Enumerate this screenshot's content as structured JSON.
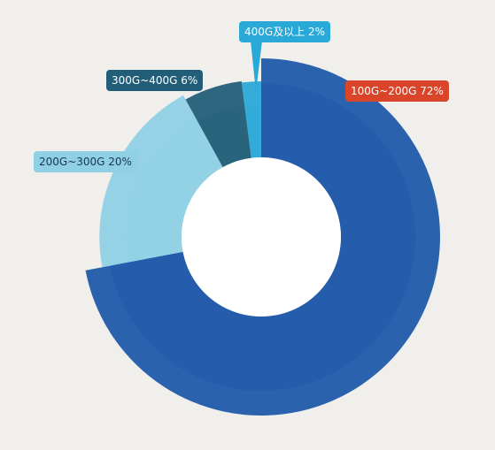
{
  "chart_data": {
    "type": "pie",
    "variant": "rose-donut",
    "title": "",
    "slices": [
      {
        "label": "100G~200G",
        "value": 72,
        "display": "100G~200G 72%",
        "color": "#1a56a8",
        "label_color": "#d9452a",
        "label_text_color": "#ffffff"
      },
      {
        "label": "200G~300G",
        "value": 20,
        "display": "200G~300G 20%",
        "color": "#8fd0e5",
        "label_color": "#8fd0e5",
        "label_text_color": "#1c3550"
      },
      {
        "label": "300G~400G",
        "value": 6,
        "display": "300G~400G 6%",
        "color": "#225e78",
        "label_color": "#225e78",
        "label_text_color": "#ffffff"
      },
      {
        "label": "400G及以上",
        "value": 2,
        "display": "400G及以上 2%",
        "color": "#2aa8d8",
        "label_color": "#2aa8d8",
        "label_text_color": "#ffffff"
      }
    ],
    "background": "#f0efec",
    "inner_hole_color": "#ffffff"
  }
}
